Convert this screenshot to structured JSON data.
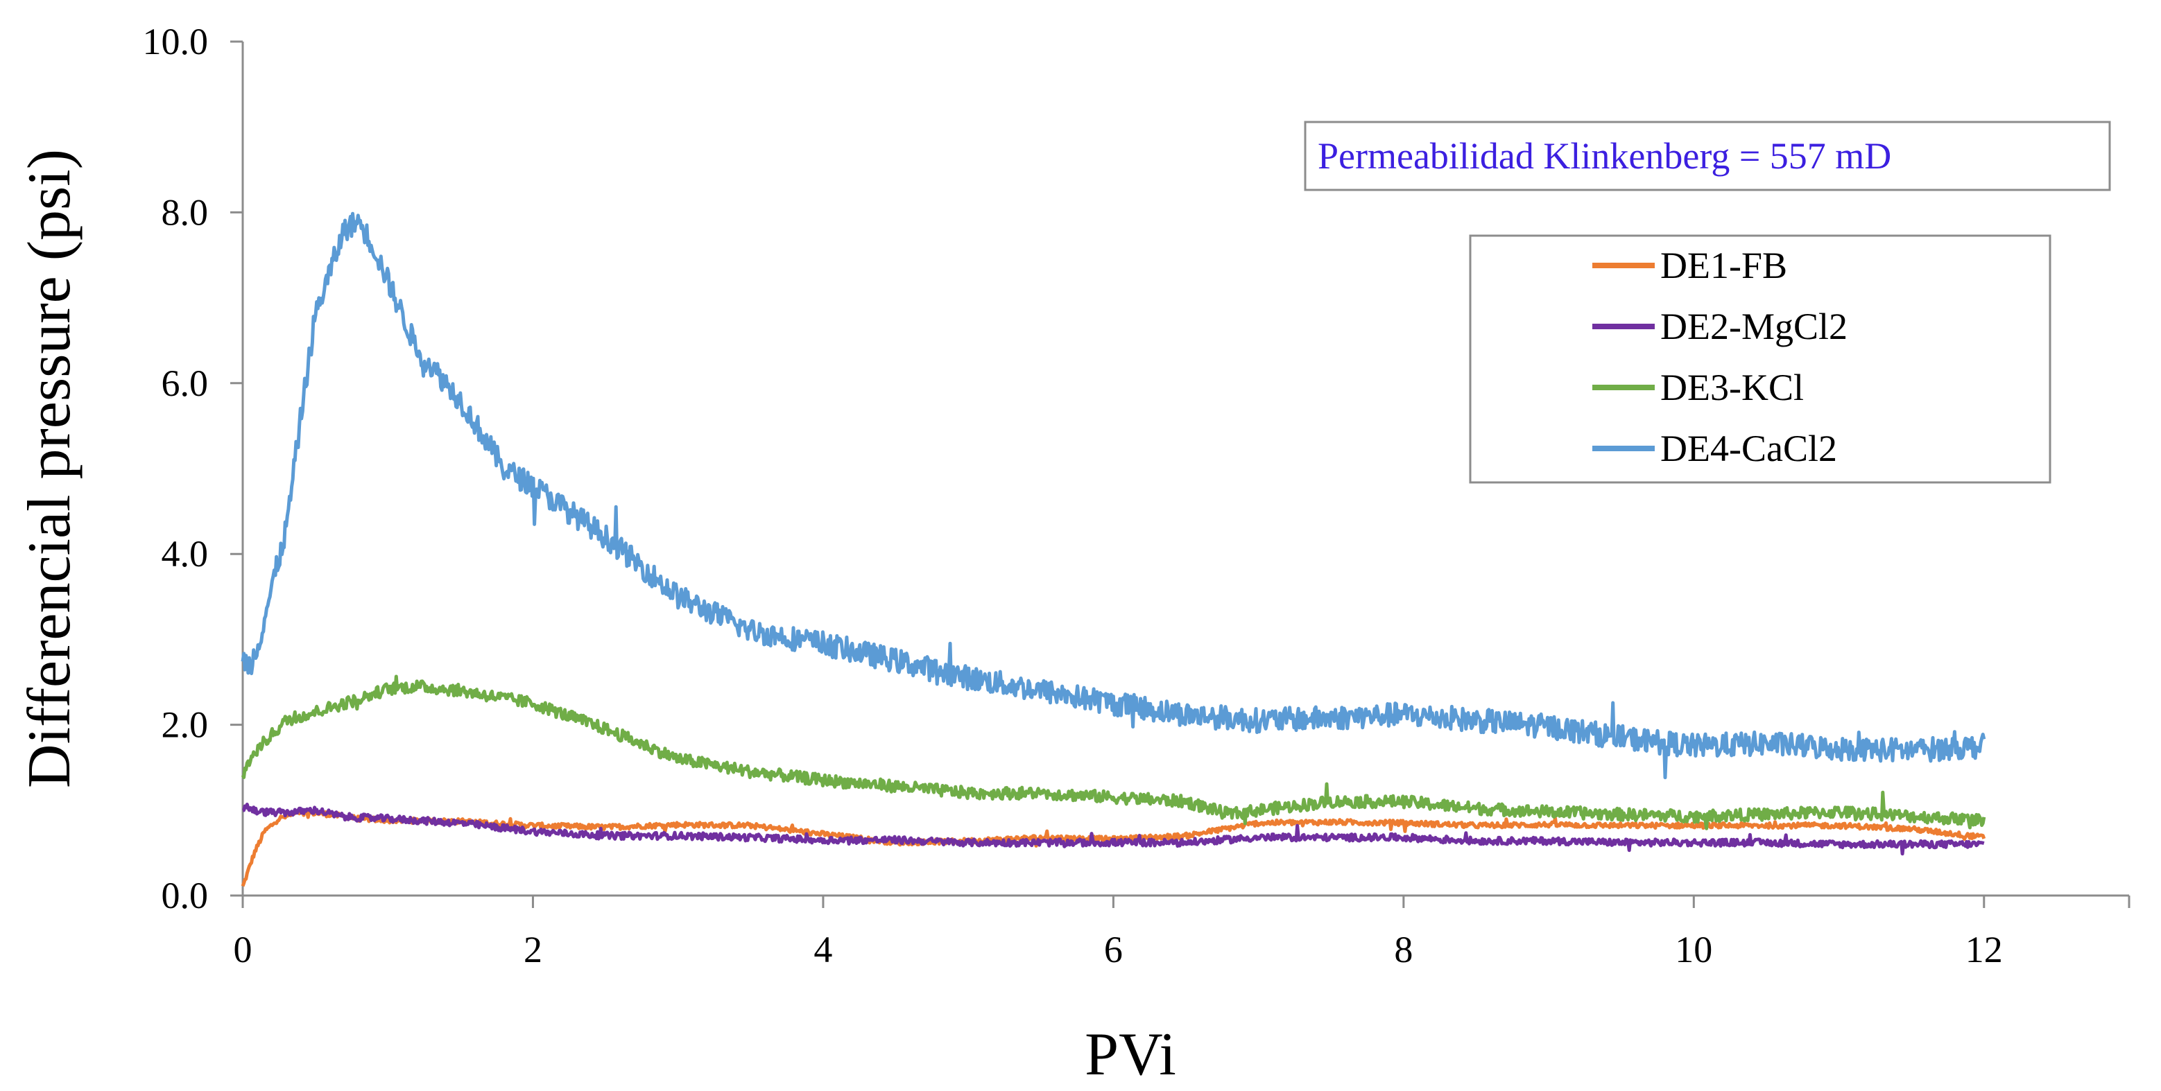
{
  "chart_data": {
    "type": "line",
    "title": "",
    "xlabel": "PVi",
    "ylabel": "Differencial pressure (psi)",
    "xlim": [
      0,
      13
    ],
    "ylim": [
      0,
      10
    ],
    "x_ticks": [
      "0",
      "2",
      "4",
      "6",
      "8",
      "10",
      "12"
    ],
    "x_tick_values": [
      0,
      2,
      4,
      6,
      8,
      10,
      12
    ],
    "y_ticks": [
      "0.0",
      "2.0",
      "4.0",
      "6.0",
      "8.0",
      "10.0"
    ],
    "y_tick_values": [
      0,
      2,
      4,
      6,
      8,
      10
    ],
    "legend_position": "top-right",
    "annotation": {
      "text": "Permeabilidad Klinkenberg = 557 mD",
      "color": "#3b1fe0"
    },
    "series": [
      {
        "name": "DE1-FB",
        "color": "#ed7d31",
        "noise": 0.03,
        "x": [
          0,
          0.02,
          0.08,
          0.15,
          0.25,
          0.4,
          0.6,
          0.8,
          1.0,
          1.5,
          2.0,
          2.5,
          3.0,
          3.5,
          4.0,
          4.5,
          5.0,
          5.5,
          6.0,
          6.5,
          7.0,
          7.5,
          8.0,
          8.5,
          9.0,
          9.5,
          10.0,
          10.5,
          11.0,
          11.5,
          12.0
        ],
        "y": [
          0.1,
          0.2,
          0.5,
          0.75,
          0.9,
          0.98,
          0.95,
          0.9,
          0.88,
          0.87,
          0.82,
          0.8,
          0.83,
          0.82,
          0.72,
          0.62,
          0.64,
          0.68,
          0.66,
          0.7,
          0.85,
          0.86,
          0.85,
          0.82,
          0.83,
          0.82,
          0.82,
          0.82,
          0.82,
          0.78,
          0.68
        ]
      },
      {
        "name": "DE2-MgCl2",
        "color": "#7030a0",
        "noise": 0.04,
        "x": [
          0,
          0.02,
          0.1,
          0.3,
          0.5,
          0.7,
          1.0,
          1.5,
          2.0,
          2.5,
          3.0,
          3.5,
          4.0,
          4.5,
          5.0,
          5.5,
          6.0,
          6.5,
          7.0,
          7.5,
          8.0,
          8.5,
          9.0,
          9.5,
          10.0,
          10.5,
          11.0,
          11.5,
          12.0
        ],
        "y": [
          1.0,
          1.05,
          0.98,
          0.97,
          1.0,
          0.92,
          0.9,
          0.85,
          0.75,
          0.7,
          0.7,
          0.68,
          0.65,
          0.65,
          0.62,
          0.62,
          0.62,
          0.62,
          0.68,
          0.68,
          0.68,
          0.64,
          0.64,
          0.62,
          0.62,
          0.62,
          0.6,
          0.6,
          0.6
        ]
      },
      {
        "name": "DE3-KCl",
        "color": "#70ad47",
        "noise": 0.07,
        "x": [
          0,
          0.05,
          0.15,
          0.3,
          0.5,
          0.8,
          1.0,
          1.2,
          1.5,
          2.0,
          2.5,
          3.0,
          3.5,
          4.0,
          4.5,
          5.0,
          5.5,
          6.0,
          6.5,
          6.8,
          7.0,
          7.5,
          8.0,
          8.5,
          9.0,
          9.5,
          10.0,
          10.5,
          11.0,
          11.5,
          12.0
        ],
        "y": [
          1.4,
          1.6,
          1.8,
          2.05,
          2.15,
          2.3,
          2.42,
          2.45,
          2.4,
          2.25,
          1.95,
          1.6,
          1.45,
          1.35,
          1.28,
          1.2,
          1.2,
          1.15,
          1.1,
          0.95,
          1.0,
          1.1,
          1.1,
          1.02,
          0.98,
          0.95,
          0.93,
          0.95,
          0.98,
          0.93,
          0.88
        ]
      },
      {
        "name": "DE4-CaCl2",
        "color": "#5b9bd5",
        "noise": 0.14,
        "x": [
          0,
          0.05,
          0.1,
          0.2,
          0.3,
          0.4,
          0.5,
          0.6,
          0.7,
          0.8,
          0.9,
          1.0,
          1.2,
          1.5,
          1.8,
          2.0,
          2.5,
          3.0,
          3.5,
          4.0,
          4.5,
          5.0,
          5.5,
          6.0,
          6.5,
          7.0,
          7.5,
          8.0,
          8.5,
          9.0,
          9.5,
          10.0,
          10.5,
          11.0,
          11.5,
          12.0
        ],
        "y": [
          2.75,
          2.7,
          2.9,
          3.6,
          4.3,
          5.6,
          6.8,
          7.3,
          7.8,
          7.9,
          7.6,
          7.2,
          6.4,
          5.8,
          5.0,
          4.8,
          4.2,
          3.5,
          3.1,
          2.95,
          2.75,
          2.55,
          2.4,
          2.25,
          2.12,
          2.05,
          2.08,
          2.12,
          2.05,
          1.98,
          1.85,
          1.75,
          1.78,
          1.72,
          1.7,
          1.75
        ]
      }
    ]
  }
}
